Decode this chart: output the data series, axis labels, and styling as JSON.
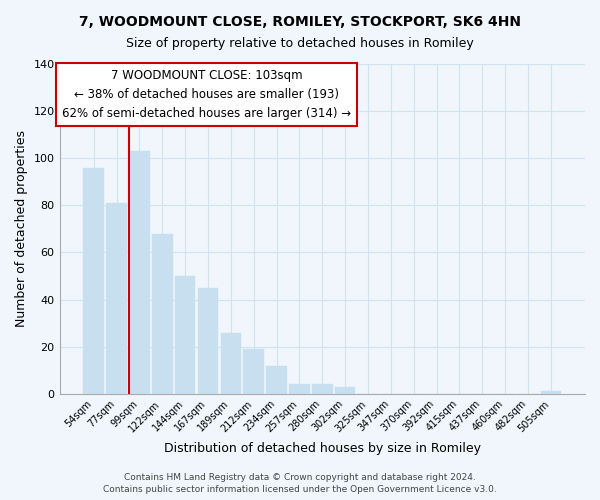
{
  "title": "7, WOODMOUNT CLOSE, ROMILEY, STOCKPORT, SK6 4HN",
  "subtitle": "Size of property relative to detached houses in Romiley",
  "xlabel": "Distribution of detached houses by size in Romiley",
  "ylabel": "Number of detached properties",
  "footer_line1": "Contains HM Land Registry data © Crown copyright and database right 2024.",
  "footer_line2": "Contains public sector information licensed under the Open Government Licence v3.0.",
  "bar_labels": [
    "54sqm",
    "77sqm",
    "99sqm",
    "122sqm",
    "144sqm",
    "167sqm",
    "189sqm",
    "212sqm",
    "234sqm",
    "257sqm",
    "280sqm",
    "302sqm",
    "325sqm",
    "347sqm",
    "370sqm",
    "392sqm",
    "415sqm",
    "437sqm",
    "460sqm",
    "482sqm",
    "505sqm"
  ],
  "bar_heights": [
    96,
    81,
    103,
    68,
    50,
    45,
    26,
    19,
    12,
    4,
    4,
    3,
    0,
    0,
    0,
    0,
    0,
    0,
    0,
    0,
    1
  ],
  "bar_color": "#c8dff0",
  "highlight_color": "#cc0000",
  "highlight_bar_idx": 2,
  "ylim": [
    0,
    140
  ],
  "yticks": [
    0,
    20,
    40,
    60,
    80,
    100,
    120,
    140
  ],
  "annotation_title": "7 WOODMOUNT CLOSE: 103sqm",
  "annotation_line1": "← 38% of detached houses are smaller (193)",
  "annotation_line2": "62% of semi-detached houses are larger (314) →",
  "grid_color": "#d0e4f0",
  "bg_color": "#f0f6fb"
}
